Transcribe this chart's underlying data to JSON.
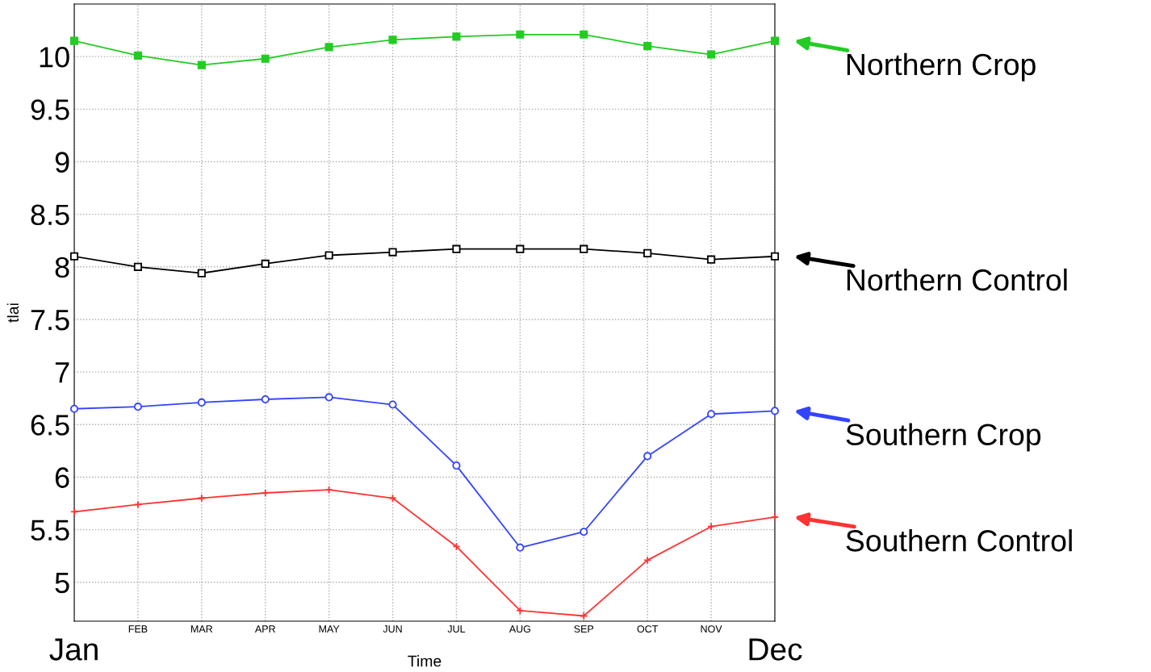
{
  "chart_data": {
    "type": "line",
    "xlabel": "Time",
    "ylabel": "tlai",
    "categories": [
      "Jan",
      "FEB",
      "MAR",
      "APR",
      "MAY",
      "JUN",
      "JUL",
      "AUG",
      "SEP",
      "OCT",
      "NOV",
      "Dec"
    ],
    "series": [
      {
        "name": "Northern Crop",
        "color": "#22cc22",
        "marker": "square",
        "values": [
          10.15,
          10.01,
          9.92,
          9.98,
          10.09,
          10.16,
          10.19,
          10.21,
          10.21,
          10.1,
          10.02,
          10.15
        ]
      },
      {
        "name": "Northern Control",
        "color": "#000000",
        "marker": "square_open",
        "values": [
          8.1,
          8.0,
          7.94,
          8.03,
          8.11,
          8.14,
          8.17,
          8.17,
          8.17,
          8.13,
          8.07,
          8.1
        ]
      },
      {
        "name": "Southern Crop",
        "color": "#3344ff",
        "marker": "circle_open",
        "values": [
          6.65,
          6.67,
          6.71,
          6.74,
          6.76,
          6.69,
          6.11,
          5.33,
          5.48,
          6.2,
          6.6,
          6.63
        ]
      },
      {
        "name": "Southern Control",
        "color": "#ff3333",
        "marker": "cross",
        "values": [
          5.67,
          5.74,
          5.8,
          5.85,
          5.88,
          5.8,
          5.34,
          4.73,
          4.68,
          5.21,
          5.53,
          5.62
        ]
      }
    ],
    "ylim": [
      4.63,
      10.5
    ],
    "yticks": [
      5,
      5.5,
      6,
      6.5,
      7,
      7.5,
      8,
      8.5,
      9,
      9.5,
      10
    ],
    "grid": true,
    "legend": "right",
    "line_style": "solid"
  }
}
